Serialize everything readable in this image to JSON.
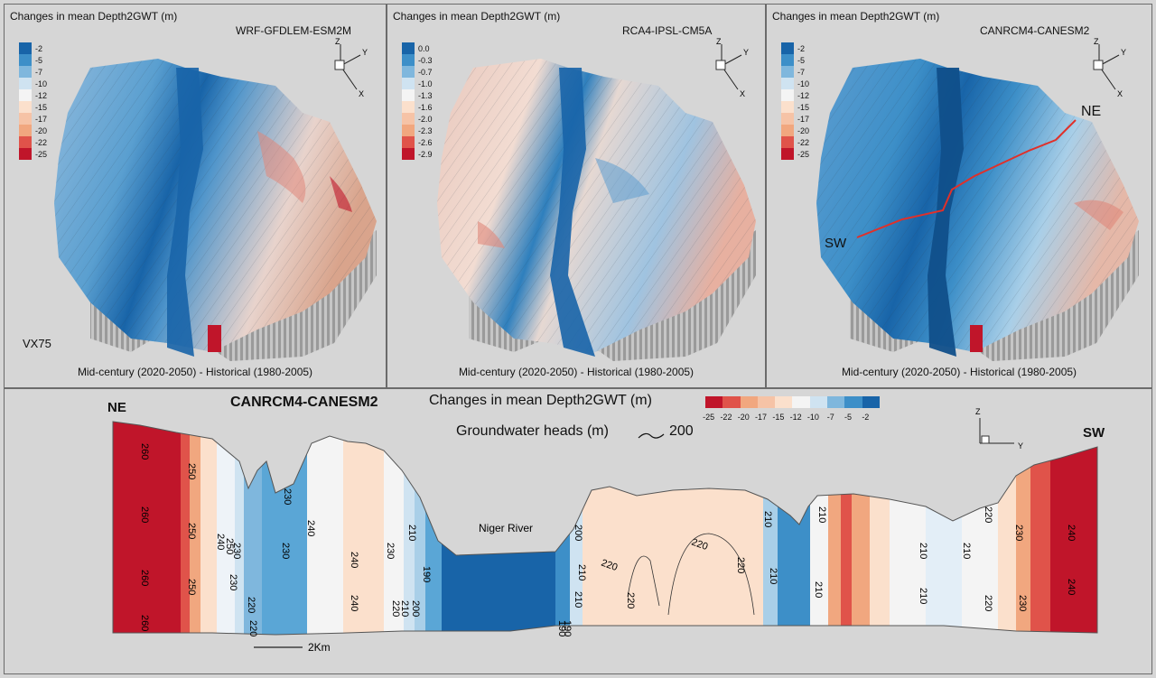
{
  "top_panels": [
    {
      "title": "Changes in mean Depth2GWT (m)",
      "model": "WRF-GFDLEM-ESM2M",
      "footer": "Mid-century (2020-2050) - Historical (1980-2005)",
      "extra_label": "VX75",
      "legend": [
        "-2",
        "-5",
        "-7",
        "-10",
        "-12",
        "-15",
        "-17",
        "-20",
        "-22",
        "-25"
      ]
    },
    {
      "title": "Changes in mean Depth2GWT (m)",
      "model": "RCA4-IPSL-CM5A",
      "footer": "Mid-century (2020-2050) - Historical (1980-2005)",
      "legend": [
        "0.0",
        "-0.3",
        "-0.7",
        "-1.0",
        "-1.3",
        "-1.6",
        "-2.0",
        "-2.3",
        "-2.6",
        "-2.9"
      ]
    },
    {
      "title": "Changes in mean Depth2GWT (m)",
      "model": "CANRCM4-CANESM2",
      "footer": "Mid-century (2020-2050) - Historical (1980-2005)",
      "legend": [
        "-2",
        "-5",
        "-7",
        "-10",
        "-12",
        "-15",
        "-17",
        "-20",
        "-22",
        "-25"
      ],
      "endpoint_ne": "NE",
      "endpoint_sw": "SW"
    }
  ],
  "axes": {
    "z": "Z",
    "y": "Y",
    "x": "X"
  },
  "colors": {
    "deep_blue": "#1864a8",
    "blue": "#3d8fc8",
    "light_blue": "#a9cfe8",
    "white": "#f4f4f4",
    "peach": "#fbe0cc",
    "orange": "#f1a77f",
    "red": "#d64336",
    "dark_red": "#c0152a",
    "section_line": "#e0302a"
  },
  "bottom": {
    "model": "CANRCM4-CANESM2",
    "title": "Changes in mean Depth2GWT (m)",
    "heads_label": "Groundwater heads (m)",
    "heads_value": "200",
    "legend": [
      "-25",
      "-22",
      "-20",
      "-17",
      "-15",
      "-12",
      "-10",
      "-7",
      "-5",
      "-2"
    ],
    "ne": "NE",
    "sw": "SW",
    "river": "Niger River",
    "scale": "2Km",
    "contour_labels": [
      {
        "t": "260",
        "v": true
      },
      {
        "t": "260",
        "v": true
      },
      {
        "t": "260",
        "v": true
      },
      {
        "t": "260",
        "v": true
      },
      {
        "t": "250",
        "v": true
      },
      {
        "t": "250",
        "v": true
      },
      {
        "t": "250",
        "v": true
      },
      {
        "t": "240",
        "v": true
      },
      {
        "t": "250",
        "v": true
      },
      {
        "t": "230",
        "v": true
      },
      {
        "t": "230",
        "v": true
      },
      {
        "t": "220",
        "v": true
      },
      {
        "t": "220",
        "v": true
      },
      {
        "t": "230",
        "v": true
      },
      {
        "t": "230",
        "v": true
      },
      {
        "t": "240",
        "v": true
      },
      {
        "t": "240",
        "v": true
      },
      {
        "t": "240",
        "v": true
      },
      {
        "t": "230",
        "v": true
      },
      {
        "t": "210",
        "v": true
      },
      {
        "t": "220",
        "v": true
      },
      {
        "t": "210",
        "v": true
      },
      {
        "t": "200",
        "v": true
      },
      {
        "t": "190",
        "v": true
      },
      {
        "t": "190",
        "v": true
      },
      {
        "t": "190",
        "v": true
      },
      {
        "t": "200",
        "v": true
      },
      {
        "t": "210",
        "v": true
      },
      {
        "t": "210",
        "v": true
      },
      {
        "t": "220",
        "v": false
      },
      {
        "t": "220",
        "v": true
      },
      {
        "t": "220",
        "v": false
      },
      {
        "t": "220",
        "v": true
      },
      {
        "t": "210",
        "v": true
      },
      {
        "t": "210",
        "v": true
      },
      {
        "t": "210",
        "v": true
      },
      {
        "t": "210",
        "v": true
      },
      {
        "t": "210",
        "v": true
      },
      {
        "t": "210",
        "v": true
      },
      {
        "t": "210",
        "v": true
      },
      {
        "t": "220",
        "v": true
      },
      {
        "t": "220",
        "v": true
      },
      {
        "t": "230",
        "v": true
      },
      {
        "t": "230",
        "v": true
      },
      {
        "t": "240",
        "v": true
      },
      {
        "t": "240",
        "v": true
      }
    ]
  }
}
